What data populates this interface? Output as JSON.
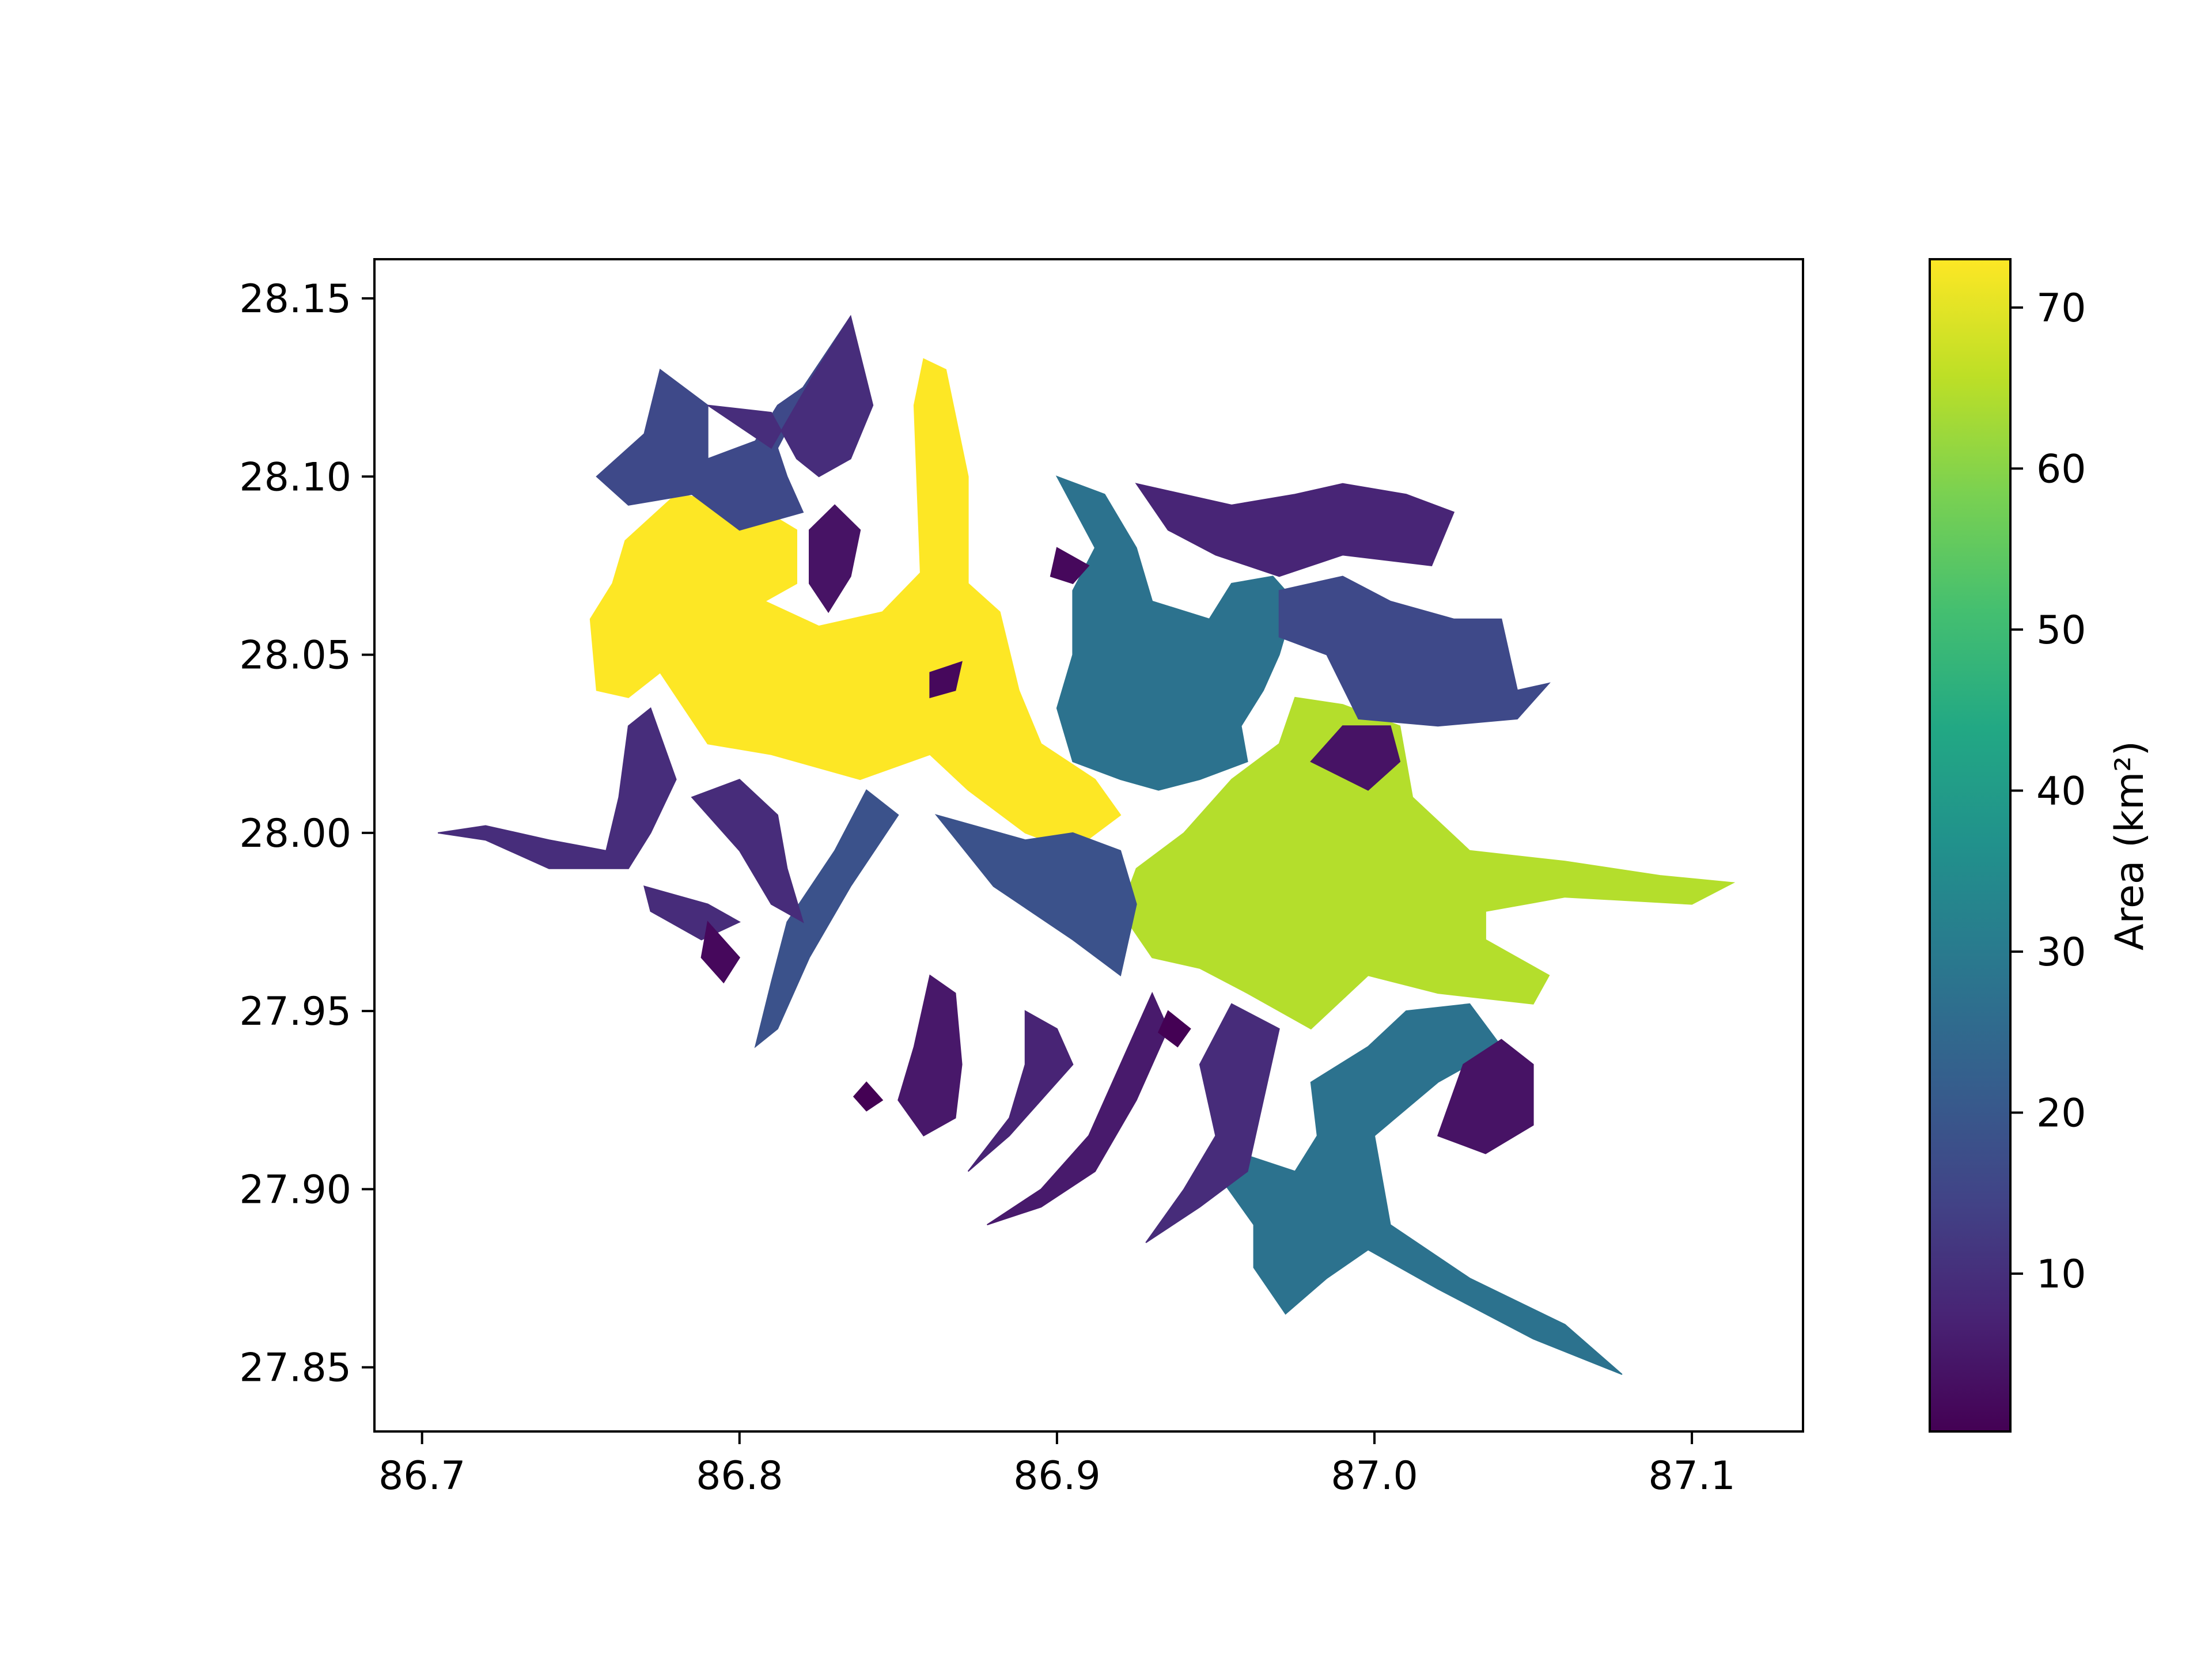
{
  "chart_data": {
    "type": "map",
    "title": "",
    "xlabel": "",
    "ylabel": "",
    "xlim": [
      86.685,
      87.135
    ],
    "ylim": [
      27.832,
      28.161
    ],
    "x_ticks": [
      "86.7",
      "86.8",
      "86.9",
      "87.0",
      "87.1"
    ],
    "y_ticks": [
      "27.85",
      "27.90",
      "27.95",
      "28.00",
      "28.05",
      "28.10",
      "28.15"
    ],
    "colorbar": {
      "label": "Area (km²)",
      "colormap": "viridis",
      "range": [
        0.2,
        73
      ],
      "ticks": [
        "10",
        "20",
        "30",
        "40",
        "50",
        "60",
        "70"
      ]
    },
    "series": [
      {
        "value": 73,
        "color": "#fde725",
        "pts": [
          [
            86.764,
            28.082
          ],
          [
            86.78,
            28.095
          ],
          [
            86.805,
            28.092
          ],
          [
            86.818,
            28.085
          ],
          [
            86.818,
            28.07
          ],
          [
            86.808,
            28.065
          ],
          [
            86.825,
            28.058
          ],
          [
            86.845,
            28.062
          ],
          [
            86.857,
            28.073
          ],
          [
            86.855,
            28.12
          ],
          [
            86.858,
            28.133
          ],
          [
            86.865,
            28.13
          ],
          [
            86.872,
            28.1
          ],
          [
            86.872,
            28.07
          ],
          [
            86.882,
            28.062
          ],
          [
            86.888,
            28.04
          ],
          [
            86.895,
            28.025
          ],
          [
            86.912,
            28.015
          ],
          [
            86.92,
            28.005
          ],
          [
            86.905,
            27.995
          ],
          [
            86.89,
            28.0
          ],
          [
            86.872,
            28.012
          ],
          [
            86.86,
            28.022
          ],
          [
            86.838,
            28.015
          ],
          [
            86.81,
            28.022
          ],
          [
            86.79,
            28.025
          ],
          [
            86.775,
            28.045
          ],
          [
            86.765,
            28.038
          ],
          [
            86.755,
            28.04
          ],
          [
            86.753,
            28.06
          ],
          [
            86.76,
            28.07
          ]
        ]
      },
      {
        "value": 67,
        "color": "#b4de2c",
        "pts": [
          [
            86.955,
            28.015
          ],
          [
            86.97,
            28.025
          ],
          [
            86.975,
            28.038
          ],
          [
            86.99,
            28.036
          ],
          [
            87.008,
            28.03
          ],
          [
            87.012,
            28.01
          ],
          [
            87.03,
            27.995
          ],
          [
            87.06,
            27.992
          ],
          [
            87.09,
            27.988
          ],
          [
            87.113,
            27.986
          ],
          [
            87.1,
            27.98
          ],
          [
            87.06,
            27.982
          ],
          [
            87.035,
            27.978
          ],
          [
            87.035,
            27.97
          ],
          [
            87.055,
            27.96
          ],
          [
            87.05,
            27.952
          ],
          [
            87.02,
            27.955
          ],
          [
            86.998,
            27.96
          ],
          [
            86.98,
            27.945
          ],
          [
            86.96,
            27.955
          ],
          [
            86.945,
            27.962
          ],
          [
            86.93,
            27.965
          ],
          [
            86.92,
            27.978
          ],
          [
            86.925,
            27.99
          ],
          [
            86.94,
            28.0
          ]
        ]
      },
      {
        "value": 28,
        "color": "#2c728e",
        "pts": [
          [
            86.9,
            28.1
          ],
          [
            86.915,
            28.095
          ],
          [
            86.925,
            28.08
          ],
          [
            86.93,
            28.065
          ],
          [
            86.948,
            28.06
          ],
          [
            86.955,
            28.07
          ],
          [
            86.968,
            28.072
          ],
          [
            86.975,
            28.065
          ],
          [
            86.97,
            28.05
          ],
          [
            86.965,
            28.04
          ],
          [
            86.958,
            28.03
          ],
          [
            86.96,
            28.02
          ],
          [
            86.945,
            28.015
          ],
          [
            86.932,
            28.012
          ],
          [
            86.92,
            28.015
          ],
          [
            86.905,
            28.02
          ],
          [
            86.9,
            28.035
          ],
          [
            86.905,
            28.05
          ],
          [
            86.905,
            28.068
          ],
          [
            86.912,
            28.08
          ]
        ]
      },
      {
        "value": 28,
        "color": "#2c728e",
        "pts": [
          [
            86.98,
            27.93
          ],
          [
            86.998,
            27.94
          ],
          [
            87.01,
            27.95
          ],
          [
            87.03,
            27.952
          ],
          [
            87.04,
            27.94
          ],
          [
            87.02,
            27.93
          ],
          [
            87.0,
            27.915
          ],
          [
            87.005,
            27.89
          ],
          [
            87.03,
            27.875
          ],
          [
            87.06,
            27.862
          ],
          [
            87.078,
            27.848
          ],
          [
            87.05,
            27.858
          ],
          [
            87.02,
            27.872
          ],
          [
            86.998,
            27.883
          ],
          [
            86.985,
            27.875
          ],
          [
            86.972,
            27.865
          ],
          [
            86.962,
            27.878
          ],
          [
            86.962,
            27.89
          ],
          [
            86.95,
            27.905
          ],
          [
            86.958,
            27.91
          ],
          [
            86.975,
            27.905
          ],
          [
            86.982,
            27.915
          ]
        ]
      },
      {
        "value": 17,
        "color": "#3b528b",
        "pts": [
          [
            86.84,
            28.012
          ],
          [
            86.83,
            27.995
          ],
          [
            86.815,
            27.975
          ],
          [
            86.81,
            27.958
          ],
          [
            86.805,
            27.94
          ],
          [
            86.812,
            27.945
          ],
          [
            86.822,
            27.965
          ],
          [
            86.835,
            27.985
          ],
          [
            86.85,
            28.005
          ]
        ]
      },
      {
        "value": 17,
        "color": "#3b528b",
        "pts": [
          [
            86.862,
            28.005
          ],
          [
            86.88,
            27.985
          ],
          [
            86.905,
            27.97
          ],
          [
            86.92,
            27.96
          ],
          [
            86.925,
            27.98
          ],
          [
            86.92,
            27.995
          ],
          [
            86.905,
            28.0
          ],
          [
            86.89,
            27.998
          ]
        ]
      },
      {
        "value": 16,
        "color": "#3e4989",
        "pts": [
          [
            86.755,
            28.1
          ],
          [
            86.77,
            28.112
          ],
          [
            86.775,
            28.13
          ],
          [
            86.79,
            28.12
          ],
          [
            86.79,
            28.105
          ],
          [
            86.805,
            28.11
          ],
          [
            86.812,
            28.12
          ],
          [
            86.82,
            28.125
          ],
          [
            86.835,
            28.145
          ],
          [
            86.825,
            28.13
          ],
          [
            86.812,
            28.108
          ],
          [
            86.815,
            28.1
          ],
          [
            86.82,
            28.09
          ],
          [
            86.8,
            28.085
          ],
          [
            86.785,
            28.095
          ],
          [
            86.765,
            28.092
          ]
        ]
      },
      {
        "value": 16,
        "color": "#3e4989",
        "pts": [
          [
            86.97,
            28.068
          ],
          [
            86.99,
            28.072
          ],
          [
            87.005,
            28.065
          ],
          [
            87.025,
            28.06
          ],
          [
            87.04,
            28.06
          ],
          [
            87.045,
            28.04
          ],
          [
            87.055,
            28.042
          ],
          [
            87.045,
            28.032
          ],
          [
            87.02,
            28.03
          ],
          [
            86.995,
            28.032
          ],
          [
            86.985,
            28.05
          ],
          [
            86.97,
            28.055
          ]
        ]
      },
      {
        "value": 10,
        "color": "#472d7b",
        "pts": [
          [
            86.79,
            28.12
          ],
          [
            86.81,
            28.118
          ],
          [
            86.818,
            28.105
          ],
          [
            86.825,
            28.1
          ],
          [
            86.835,
            28.105
          ],
          [
            86.842,
            28.12
          ],
          [
            86.835,
            28.145
          ],
          [
            86.823,
            28.128
          ],
          [
            86.81,
            28.108
          ]
        ]
      },
      {
        "value": 10,
        "color": "#472d7b",
        "pts": [
          [
            86.705,
            28.0
          ],
          [
            86.72,
            27.998
          ],
          [
            86.74,
            27.99
          ],
          [
            86.765,
            27.99
          ],
          [
            86.772,
            28.0
          ],
          [
            86.78,
            28.015
          ],
          [
            86.772,
            28.035
          ],
          [
            86.765,
            28.03
          ],
          [
            86.762,
            28.01
          ],
          [
            86.758,
            27.995
          ],
          [
            86.74,
            27.998
          ],
          [
            86.72,
            28.002
          ]
        ]
      },
      {
        "value": 9,
        "color": "#472c7a",
        "pts": [
          [
            86.785,
            28.01
          ],
          [
            86.8,
            27.995
          ],
          [
            86.81,
            27.98
          ],
          [
            86.82,
            27.975
          ],
          [
            86.815,
            27.99
          ],
          [
            86.812,
            28.005
          ],
          [
            86.8,
            28.015
          ]
        ]
      },
      {
        "value": 9,
        "color": "#472c7a",
        "pts": [
          [
            86.77,
            27.985
          ],
          [
            86.79,
            27.98
          ],
          [
            86.8,
            27.975
          ],
          [
            86.788,
            27.97
          ],
          [
            86.772,
            27.978
          ]
        ]
      },
      {
        "value": 9,
        "color": "#472c7a",
        "pts": [
          [
            86.955,
            27.952
          ],
          [
            86.97,
            27.945
          ],
          [
            86.965,
            27.925
          ],
          [
            86.96,
            27.905
          ],
          [
            86.945,
            27.895
          ],
          [
            86.928,
            27.885
          ],
          [
            86.94,
            27.9
          ],
          [
            86.95,
            27.915
          ],
          [
            86.945,
            27.935
          ]
        ]
      },
      {
        "value": 8,
        "color": "#482576",
        "pts": [
          [
            86.925,
            28.098
          ],
          [
            86.955,
            28.092
          ],
          [
            86.975,
            28.095
          ],
          [
            86.99,
            28.098
          ],
          [
            87.01,
            28.095
          ],
          [
            87.025,
            28.09
          ],
          [
            87.018,
            28.075
          ],
          [
            86.99,
            28.078
          ],
          [
            86.97,
            28.072
          ],
          [
            86.95,
            28.078
          ],
          [
            86.935,
            28.085
          ]
        ]
      },
      {
        "value": 7,
        "color": "#482475",
        "pts": [
          [
            86.89,
            27.95
          ],
          [
            86.9,
            27.945
          ],
          [
            86.905,
            27.935
          ],
          [
            86.895,
            27.925
          ],
          [
            86.885,
            27.915
          ],
          [
            86.872,
            27.905
          ],
          [
            86.885,
            27.92
          ],
          [
            86.89,
            27.935
          ]
        ]
      },
      {
        "value": 5,
        "color": "#481a6c",
        "pts": [
          [
            86.93,
            27.955
          ],
          [
            86.935,
            27.945
          ],
          [
            86.925,
            27.925
          ],
          [
            86.912,
            27.905
          ],
          [
            86.895,
            27.895
          ],
          [
            86.878,
            27.89
          ],
          [
            86.895,
            27.9
          ],
          [
            86.91,
            27.915
          ],
          [
            86.92,
            27.935
          ]
        ]
      },
      {
        "value": 4,
        "color": "#48186a",
        "pts": [
          [
            86.86,
            27.96
          ],
          [
            86.868,
            27.955
          ],
          [
            86.87,
            27.935
          ],
          [
            86.868,
            27.92
          ],
          [
            86.858,
            27.915
          ],
          [
            86.85,
            27.925
          ],
          [
            86.855,
            27.94
          ]
        ]
      },
      {
        "value": 3,
        "color": "#471365",
        "pts": [
          [
            86.822,
            28.085
          ],
          [
            86.83,
            28.092
          ],
          [
            86.838,
            28.085
          ],
          [
            86.835,
            28.072
          ],
          [
            86.828,
            28.062
          ],
          [
            86.822,
            28.07
          ]
        ]
      },
      {
        "value": 3,
        "color": "#471365",
        "pts": [
          [
            87.028,
            27.935
          ],
          [
            87.04,
            27.942
          ],
          [
            87.05,
            27.935
          ],
          [
            87.05,
            27.918
          ],
          [
            87.035,
            27.91
          ],
          [
            87.02,
            27.915
          ]
        ]
      },
      {
        "value": 3,
        "color": "#471365",
        "pts": [
          [
            86.98,
            28.02
          ],
          [
            86.99,
            28.03
          ],
          [
            87.005,
            28.03
          ],
          [
            87.008,
            28.02
          ],
          [
            86.998,
            28.012
          ]
        ]
      },
      {
        "value": 2,
        "color": "#46085c",
        "pts": [
          [
            86.79,
            27.975
          ],
          [
            86.8,
            27.965
          ],
          [
            86.795,
            27.958
          ],
          [
            86.788,
            27.965
          ]
        ]
      },
      {
        "value": 2,
        "color": "#46085c",
        "pts": [
          [
            86.9,
            28.08
          ],
          [
            86.91,
            28.075
          ],
          [
            86.905,
            28.07
          ],
          [
            86.898,
            28.072
          ]
        ]
      },
      {
        "value": 2,
        "color": "#46085c",
        "pts": [
          [
            86.86,
            28.045
          ],
          [
            86.87,
            28.048
          ],
          [
            86.868,
            28.04
          ],
          [
            86.86,
            28.038
          ]
        ]
      },
      {
        "value": 1,
        "color": "#440154",
        "pts": [
          [
            86.84,
            27.93
          ],
          [
            86.845,
            27.925
          ],
          [
            86.84,
            27.922
          ],
          [
            86.836,
            27.926
          ]
        ]
      },
      {
        "value": 1,
        "color": "#440154",
        "pts": [
          [
            86.935,
            27.95
          ],
          [
            86.942,
            27.945
          ],
          [
            86.938,
            27.94
          ],
          [
            86.932,
            27.944
          ]
        ]
      }
    ]
  }
}
